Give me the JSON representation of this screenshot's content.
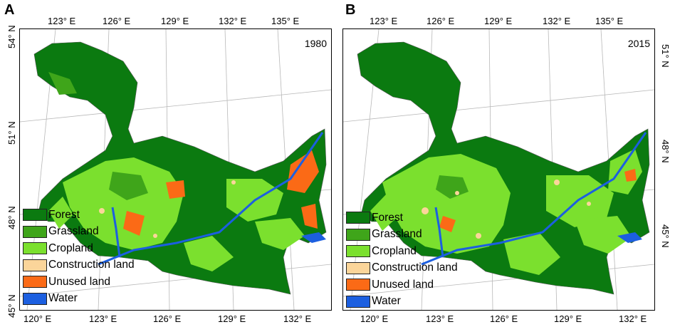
{
  "panels": [
    {
      "letter": "A",
      "year": "1980",
      "top_lon_ticks": [
        "123° E",
        "126° E",
        "129° E",
        "132° E",
        "135° E"
      ],
      "bottom_lon_ticks": [
        "120° E",
        "123° E",
        "126° E",
        "129° E",
        "132° E"
      ],
      "side_lat_ticks": [
        "54° N",
        "51° N",
        "48° N",
        "45° N"
      ]
    },
    {
      "letter": "B",
      "year": "2015",
      "top_lon_ticks": [
        "123° E",
        "126° E",
        "129° E",
        "132° E",
        "135° E"
      ],
      "bottom_lon_ticks": [
        "120° E",
        "123° E",
        "126° E",
        "129° E",
        "132° E"
      ],
      "side_lat_ticks": [
        "51° N",
        "48° N",
        "45° N"
      ]
    }
  ],
  "legend": [
    {
      "label": "Forest",
      "color": "#0b7a10"
    },
    {
      "label": "Grassland",
      "color": "#3fa51a"
    },
    {
      "label": "Cropland",
      "color": "#7be02e"
    },
    {
      "label": "Construction land",
      "color": "#fbd59a"
    },
    {
      "label": "Unused land",
      "color": "#fb6a16"
    },
    {
      "label": "Water",
      "color": "#1c5fe0"
    }
  ]
}
